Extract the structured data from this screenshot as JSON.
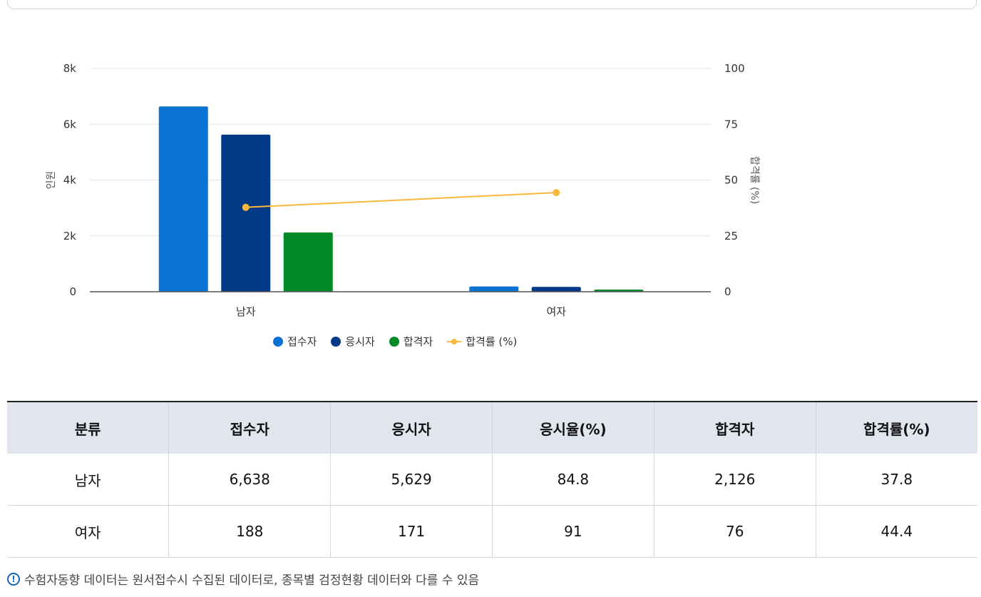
{
  "chart_data": {
    "type": "bar",
    "categories": [
      "남자",
      "여자"
    ],
    "series": [
      {
        "name": "접수자",
        "values": [
          6638,
          188
        ],
        "color": "#0a73d1",
        "axis": "left"
      },
      {
        "name": "응시자",
        "values": [
          5629,
          171
        ],
        "color": "#033a87",
        "axis": "left"
      },
      {
        "name": "합격자",
        "values": [
          2126,
          76
        ],
        "color": "#028a28",
        "axis": "left"
      },
      {
        "name": "합격률 (%)",
        "type": "line",
        "values": [
          37.8,
          44.4
        ],
        "color": "#fbb73c",
        "axis": "right"
      }
    ],
    "ylabel": "인원",
    "y2label": "합격률 (%)",
    "ylim": [
      0,
      8000
    ],
    "y2lim": [
      0,
      100
    ],
    "yticks": [
      "0",
      "2k",
      "4k",
      "6k",
      "8k"
    ],
    "y2ticks": [
      "0",
      "25",
      "50",
      "75",
      "100"
    ],
    "grid": true,
    "legend_position": "bottom"
  },
  "table": {
    "headers": [
      "분류",
      "접수자",
      "응시자",
      "응시율(%)",
      "합격자",
      "합격률(%)"
    ],
    "rows": [
      [
        "남자",
        "6,638",
        "5,629",
        "84.8",
        "2,126",
        "37.8"
      ],
      [
        "여자",
        "188",
        "171",
        "91",
        "76",
        "44.4"
      ]
    ]
  },
  "note": {
    "icon": "info-icon",
    "text": "수험자동향 데이터는 원서접수시 수집된 데이터로, 종목별 검정현황 데이터와 다를 수 있음"
  }
}
